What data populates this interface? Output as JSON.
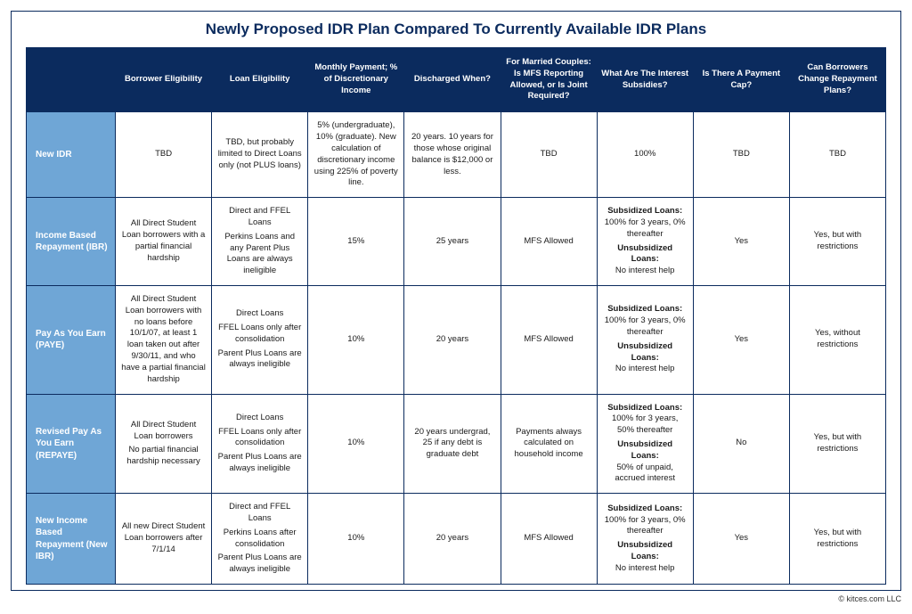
{
  "title": "Newly Proposed IDR Plan Compared To Currently Available IDR Plans",
  "copyright": "© kitces.com LLC",
  "columns": [
    "Borrower Eligibility",
    "Loan Eligibility",
    "Monthly Payment; % of Discretionary Income",
    "Discharged When?",
    "For Married Couples: Is MFS Reporting Allowed, or Is Joint Required?",
    "What Are The Interest Subsidies?",
    "Is There A Payment Cap?",
    "Can Borrowers Change Repayment Plans?"
  ],
  "rows": [
    {
      "name": "New IDR",
      "borrower": [
        "TBD"
      ],
      "loan": [
        "TBD, but probably limited to Direct Loans only (not PLUS loans)"
      ],
      "payment": [
        "5% (undergraduate), 10% (graduate). New calculation of discretionary income using 225% of poverty line."
      ],
      "discharged": [
        "20 years. 10 years for those whose original balance is $12,000 or less."
      ],
      "mfs": [
        "TBD"
      ],
      "subsidy_plain": "100%",
      "cap": "TBD",
      "change": "TBD"
    },
    {
      "name": "Income Based Repayment (IBR)",
      "borrower": [
        "All Direct Student Loan borrowers with a partial financial hardship"
      ],
      "loan": [
        "Direct and FFEL Loans",
        "Perkins Loans and any Parent Plus Loans are always ineligible"
      ],
      "payment": [
        "15%"
      ],
      "discharged": [
        "25 years"
      ],
      "mfs": [
        "MFS Allowed"
      ],
      "subsidy": {
        "sub": "100% for 3 years, 0% thereafter",
        "unsub": "No interest help"
      },
      "cap": "Yes",
      "change": "Yes, but with restrictions"
    },
    {
      "name": "Pay As You Earn (PAYE)",
      "borrower": [
        "All Direct Student Loan borrowers with no loans before 10/1/07, at least 1 loan taken out after 9/30/11, and who have a partial financial hardship"
      ],
      "loan": [
        "Direct Loans",
        "FFEL Loans only after consolidation",
        "Parent Plus Loans are always ineligible"
      ],
      "payment": [
        "10%"
      ],
      "discharged": [
        "20 years"
      ],
      "mfs": [
        "MFS Allowed"
      ],
      "subsidy": {
        "sub": "100% for 3 years, 0% thereafter",
        "unsub": "No interest help"
      },
      "cap": "Yes",
      "change": "Yes, without restrictions"
    },
    {
      "name": "Revised Pay As You Earn (REPAYE)",
      "borrower": [
        "All Direct Student Loan borrowers",
        "No partial financial hardship necessary"
      ],
      "loan": [
        "Direct Loans",
        "FFEL Loans only after consolidation",
        "Parent Plus Loans are always ineligible"
      ],
      "payment": [
        "10%"
      ],
      "discharged": [
        "20 years undergrad, 25 if any debt is graduate debt"
      ],
      "mfs": [
        "Payments always calculated on household income"
      ],
      "subsidy": {
        "sub": "100% for 3 years, 50% thereafter",
        "unsub": "50% of unpaid, accrued interest"
      },
      "cap": "No",
      "change": "Yes, but with restrictions"
    },
    {
      "name": "New Income Based Repayment (New IBR)",
      "borrower": [
        "All new Direct Student Loan borrowers after 7/1/14"
      ],
      "loan": [
        "Direct and FFEL Loans",
        "Perkins Loans after consolidation",
        "Parent Plus Loans are always ineligible"
      ],
      "payment": [
        "10%"
      ],
      "discharged": [
        "20 years"
      ],
      "mfs": [
        "MFS Allowed"
      ],
      "subsidy": {
        "sub": "100% for 3 years, 0% thereafter",
        "unsub": "No interest help"
      },
      "cap": "Yes",
      "change": "Yes, but with restrictions"
    }
  ],
  "labels": {
    "subsidized": "Subsidized Loans:",
    "unsubsidized": "Unsubsidized Loans:"
  }
}
